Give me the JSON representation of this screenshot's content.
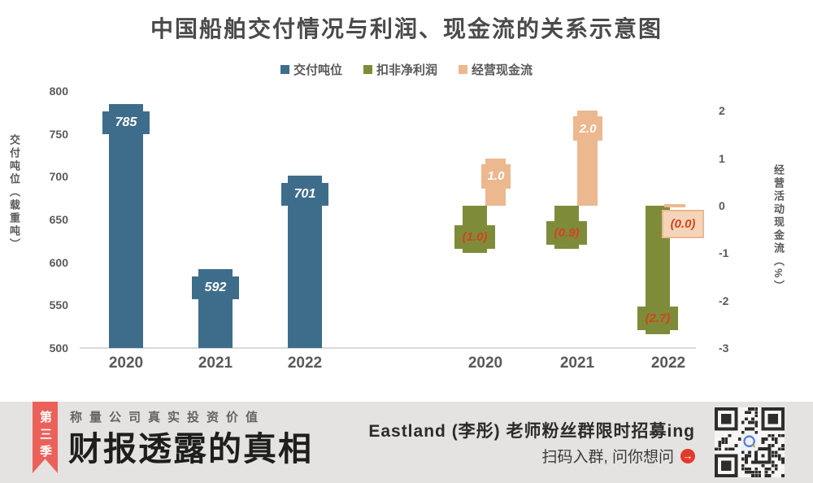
{
  "chart": {
    "title": "中国船舶交付情况与利润、现金流的关系示意图",
    "legend": [
      {
        "label": "交付吨位",
        "color": "#3e6d8c"
      },
      {
        "label": "扣非净利润",
        "color": "#7e8c3a"
      },
      {
        "label": "经营现金流",
        "color": "#ecb88f"
      }
    ],
    "left_axis": {
      "title": "交付吨位（载重吨）",
      "ticks": [
        "800",
        "750",
        "700",
        "650",
        "600",
        "550",
        "500"
      ]
    },
    "right_axis": {
      "title": "经营活动现金流（%）",
      "ticks": [
        "2",
        "1",
        "0",
        "-1",
        "-2",
        "-3"
      ]
    },
    "colors": {
      "negative_label": "#d6411f",
      "positive_label": "#ffffff",
      "axis_text": "#595959",
      "baseline": "#d9d9d9",
      "zero_box_fill": "#f4d5b9"
    }
  },
  "chart_data": [
    {
      "type": "bar",
      "title": "交付吨位",
      "categories": [
        "2020",
        "2021",
        "2022"
      ],
      "values": [
        785,
        592,
        701
      ],
      "labels": [
        "785",
        "592",
        "701"
      ],
      "xlabel": "",
      "ylabel": "交付吨位（载重吨）",
      "ylim": [
        500,
        800
      ]
    },
    {
      "type": "bar",
      "categories": [
        "2020",
        "2021",
        "2022"
      ],
      "series": [
        {
          "name": "扣非净利润",
          "values": [
            -1.0,
            -0.9,
            -2.7
          ],
          "labels": [
            "(1.0)",
            "(0.9)",
            "(2.7)"
          ]
        },
        {
          "name": "经营现金流",
          "values": [
            1.0,
            2.0,
            0.0
          ],
          "labels": [
            "1.0",
            "2.0",
            "(0.0)"
          ]
        }
      ],
      "xlabel": "",
      "ylabel": "经营活动现金流（%）",
      "ylim": [
        -3,
        2
      ]
    }
  ],
  "banner": {
    "ribbon_label": "第三季",
    "tagline": "称量公司真实投资价值",
    "title": "财报透露的真相",
    "promo_line1": "Eastland (李彤) 老师粉丝群限时招募ing",
    "promo_line2": "扫码入群, 问你想问",
    "arrow_icon": "→",
    "colors": {
      "ribbon": "#ea615a",
      "background": "#e4e3e1",
      "arrow": "#e23a2b"
    }
  }
}
